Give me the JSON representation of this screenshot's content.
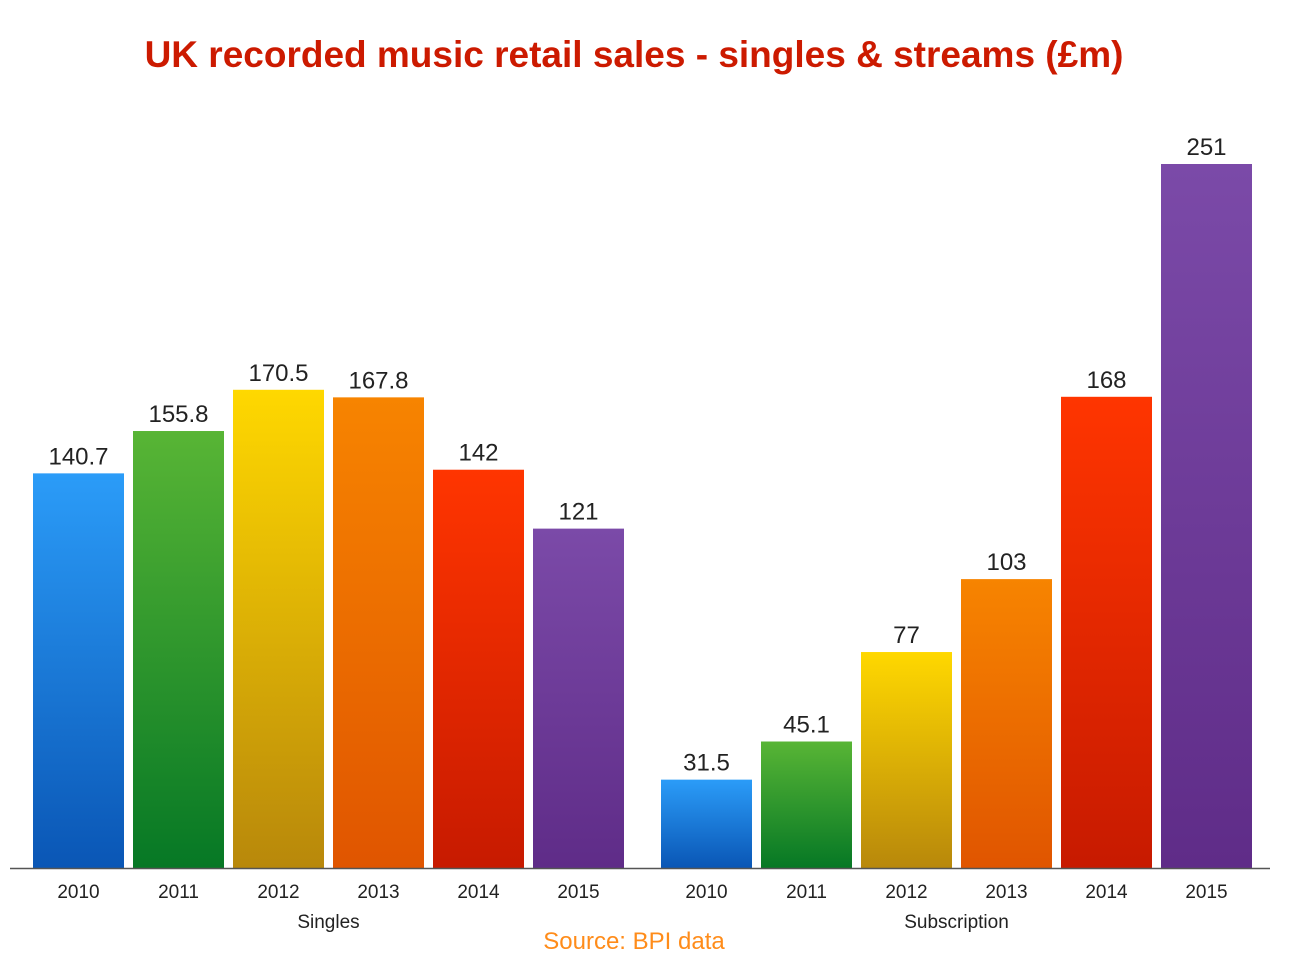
{
  "chart_data": {
    "type": "bar",
    "title": "UK recorded music retail sales - singles & streams (£m)",
    "source": "Source: BPI data",
    "categories": [
      "2010",
      "2011",
      "2012",
      "2013",
      "2014",
      "2015"
    ],
    "groups": [
      {
        "name": "Singles",
        "values": [
          140.7,
          155.8,
          170.5,
          167.8,
          142,
          121
        ]
      },
      {
        "name": "Subscription",
        "values": [
          31.5,
          45.1,
          77,
          103,
          168,
          251
        ]
      }
    ],
    "data_labels": {
      "Singles": [
        "140.7",
        "155.8",
        "170.5",
        "167.8",
        "142",
        "121"
      ],
      "Subscription": [
        "31.5",
        "45.1",
        "77",
        "103",
        "168",
        "251"
      ]
    },
    "ylim": [
      0,
      251
    ],
    "grid": false,
    "legend": "none",
    "colors": [
      [
        "#2b9cf8",
        "#0a56b5"
      ],
      [
        "#58b535",
        "#067825"
      ],
      [
        "#ffd800",
        "#b8880b"
      ],
      [
        "#f78400",
        "#e05500"
      ],
      [
        "#ff3500",
        "#c71a00"
      ],
      [
        "#7b4aa8",
        "#5f2c88"
      ]
    ],
    "title_color": "#cc1a00",
    "source_color": "#ff8c1a"
  }
}
